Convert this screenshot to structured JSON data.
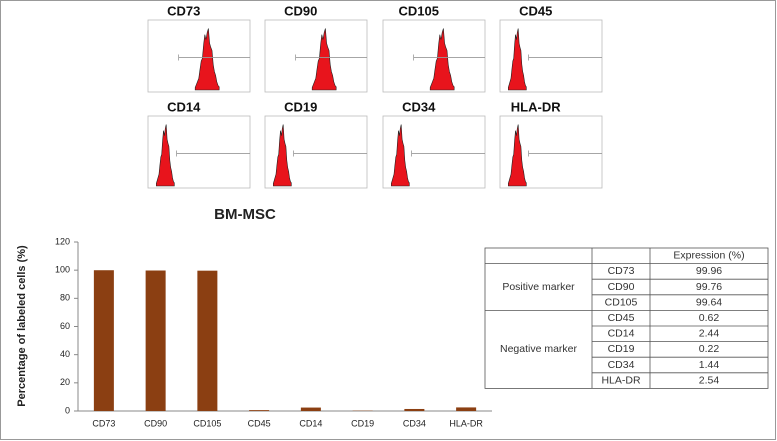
{
  "chart_data": {
    "type": "bar",
    "title": "BM-MSC",
    "y_label": "Percentage of labeled cells (%)",
    "categories": [
      "CD73",
      "CD90",
      "CD105",
      "CD45",
      "CD14",
      "CD19",
      "CD34",
      "HLA-DR"
    ],
    "values": [
      99.96,
      99.76,
      99.64,
      0.62,
      2.44,
      0.22,
      1.44,
      2.54
    ],
    "color": "#8b3f12",
    "ylim": [
      0,
      120
    ],
    "yticks": [
      0,
      20,
      40,
      60,
      80,
      100,
      120
    ]
  },
  "table": {
    "header": "Expression (%)",
    "groups": [
      "Positive marker",
      "Negative marker"
    ]
  }
}
